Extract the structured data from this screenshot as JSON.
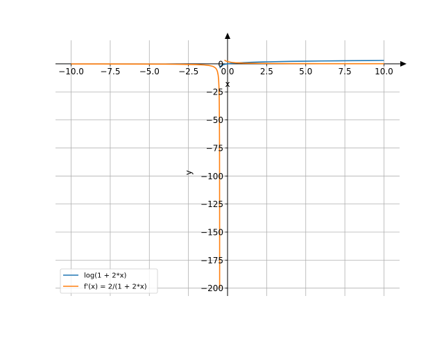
{
  "chart_data": {
    "type": "line",
    "title": "",
    "xlabel": "x",
    "ylabel": "y",
    "xlim": [
      -11.0,
      11.0
    ],
    "ylim": [
      -207,
      21
    ],
    "grid": true,
    "legend_placement": "lower-left",
    "x_ticks": [
      {
        "value": -10,
        "label": "−10.0"
      },
      {
        "value": -7.5,
        "label": "−7.5"
      },
      {
        "value": -5,
        "label": "−5.0"
      },
      {
        "value": -2.5,
        "label": "−2.5"
      },
      {
        "value": 0,
        "label": "0.0"
      },
      {
        "value": 2.5,
        "label": "2.5"
      },
      {
        "value": 5,
        "label": "5.0"
      },
      {
        "value": 7.5,
        "label": "7.5"
      },
      {
        "value": 10,
        "label": "10.0"
      }
    ],
    "y_ticks": [
      {
        "value": 0,
        "label": "0"
      },
      {
        "value": -25,
        "label": "−25"
      },
      {
        "value": -50,
        "label": "−50"
      },
      {
        "value": -75,
        "label": "−75"
      },
      {
        "value": -100,
        "label": "−100"
      },
      {
        "value": -125,
        "label": "−125"
      },
      {
        "value": -150,
        "label": "−150"
      },
      {
        "value": -175,
        "label": "−175"
      },
      {
        "value": -200,
        "label": "−200"
      }
    ],
    "series": [
      {
        "name": "log(1 + 2*x)",
        "color": "#1f77b4",
        "points": [
          [
            -0.49,
            -3.9
          ],
          [
            -0.45,
            -2.3
          ],
          [
            -0.4,
            -1.61
          ],
          [
            -0.3,
            -0.92
          ],
          [
            -0.2,
            -0.51
          ],
          [
            -0.1,
            -0.22
          ],
          [
            0,
            0
          ],
          [
            0.25,
            0.41
          ],
          [
            0.5,
            0.69
          ],
          [
            1,
            1.1
          ],
          [
            1.5,
            1.39
          ],
          [
            2,
            1.61
          ],
          [
            2.5,
            1.79
          ],
          [
            3,
            1.95
          ],
          [
            4,
            2.2
          ],
          [
            5,
            2.4
          ],
          [
            6,
            2.56
          ],
          [
            7,
            2.71
          ],
          [
            8,
            2.83
          ],
          [
            9,
            2.94
          ],
          [
            10,
            3.04
          ]
        ]
      },
      {
        "name": "f'(x) = 2/(1 + 2*x)",
        "color": "#ff7f0e",
        "points": [
          [
            -10,
            -0.11
          ],
          [
            -8,
            -0.13
          ],
          [
            -6,
            -0.18
          ],
          [
            -4,
            -0.29
          ],
          [
            -3,
            -0.4
          ],
          [
            -2,
            -0.67
          ],
          [
            -1.5,
            -1.0
          ],
          [
            -1.2,
            -1.43
          ],
          [
            -1,
            -2.0
          ],
          [
            -0.9,
            -2.5
          ],
          [
            -0.8,
            -3.33
          ],
          [
            -0.75,
            -4.0
          ],
          [
            -0.7,
            -5.0
          ],
          [
            -0.65,
            -6.67
          ],
          [
            -0.6,
            -10.0
          ],
          [
            -0.57,
            -14.3
          ],
          [
            -0.55,
            -20.0
          ],
          [
            -0.54,
            -25.0
          ],
          [
            -0.53,
            -33.3
          ],
          [
            -0.52,
            -50.0
          ],
          [
            -0.515,
            -66.7
          ],
          [
            -0.51,
            -100.0
          ],
          [
            -0.507,
            -142.9
          ],
          [
            -0.505,
            -200.0
          ],
          null,
          [
            -0.2,
            3.33
          ],
          [
            -0.1,
            2.5
          ],
          [
            0,
            2.0
          ],
          [
            0.25,
            1.33
          ],
          [
            0.5,
            1.0
          ],
          [
            1,
            0.67
          ],
          [
            1.5,
            0.5
          ],
          [
            2,
            0.4
          ],
          [
            3,
            0.29
          ],
          [
            4,
            0.22
          ],
          [
            5,
            0.18
          ],
          [
            6,
            0.15
          ],
          [
            7,
            0.13
          ],
          [
            8,
            0.12
          ],
          [
            9,
            0.11
          ],
          [
            10,
            0.1
          ]
        ]
      }
    ]
  }
}
